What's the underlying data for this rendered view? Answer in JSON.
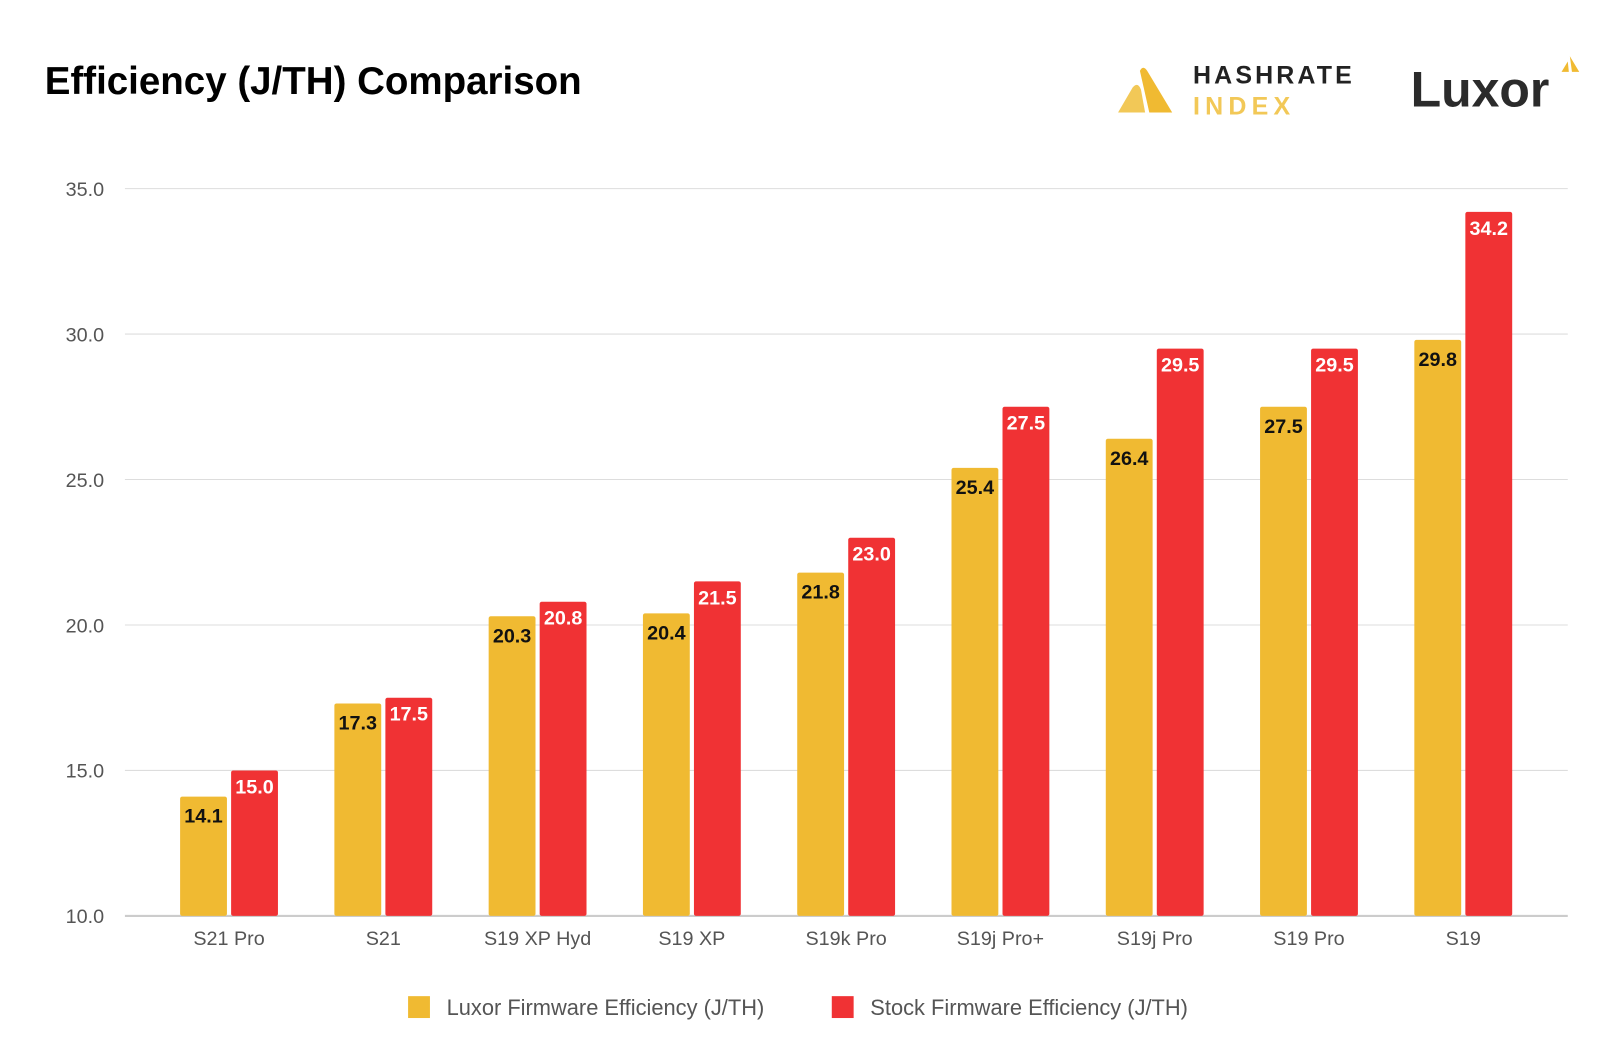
{
  "logos": {
    "hashrate_line1": "HASHRATE",
    "hashrate_line2": "INDEX",
    "luxor": "Luxor"
  },
  "colors": {
    "luxor": "#F0BA32",
    "stock": "#F03234",
    "grid": "#DDDDDD",
    "axis": "#CCCCCC",
    "tick_text": "#555555"
  },
  "chart_data": {
    "type": "bar",
    "title": "Efficiency (J/TH) Comparison",
    "categories": [
      "S21 Pro",
      "S21",
      "S19 XP Hyd",
      "S19 XP",
      "S19k Pro",
      "S19j Pro+",
      "S19j Pro",
      "S19 Pro",
      "S19"
    ],
    "series": [
      {
        "name": "Luxor Firmware Efficiency (J/TH)",
        "color": "#F0BA32",
        "values": [
          14.1,
          17.3,
          20.3,
          20.4,
          21.8,
          25.4,
          26.4,
          27.5,
          29.8
        ]
      },
      {
        "name": "Stock Firmware Efficiency (J/TH)",
        "color": "#F03234",
        "values": [
          15.0,
          17.5,
          20.8,
          21.5,
          23.0,
          27.5,
          29.5,
          29.5,
          34.2
        ]
      }
    ],
    "ylim": [
      10,
      35
    ],
    "yticks": [
      "10.0",
      "15.0",
      "20.0",
      "25.0",
      "30.0",
      "35.0"
    ],
    "grid": true,
    "legend": "bottom",
    "data_labels": true
  }
}
